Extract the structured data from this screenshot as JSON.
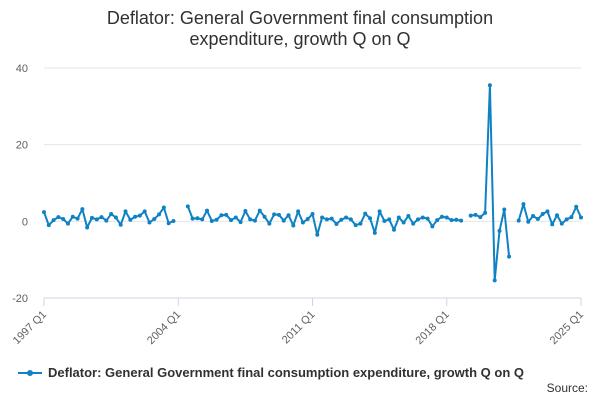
{
  "chart_data": {
    "type": "line",
    "title_line1": "Deflator: General Government final consumption",
    "title_line2": "expenditure, growth Q on Q",
    "xlabel": "",
    "ylabel": "",
    "ylim": [
      -20,
      40
    ],
    "yticks": [
      "40",
      "20",
      "0",
      "-20"
    ],
    "xticks": [
      "1997 Q1",
      "2004 Q1",
      "2011 Q1",
      "2018 Q1",
      "2025 Q1"
    ],
    "grid": true,
    "legend_position": "bottom-left",
    "color": "#0f82c4",
    "series": [
      {
        "name": "Deflator: General Government final consumption expenditure, growth Q on Q",
        "x_start": "1997 Q1",
        "values": [
          2.4,
          -1.0,
          0.3,
          1.1,
          0.6,
          -0.6,
          1.2,
          0.7,
          3.2,
          -1.6,
          0.9,
          0.5,
          1.1,
          0.2,
          1.9,
          1.0,
          -0.9,
          2.6,
          0.4,
          1.2,
          1.5,
          2.6,
          -0.3,
          0.6,
          1.8,
          3.6,
          -0.5,
          0.1,
          null,
          null,
          3.9,
          0.7,
          0.8,
          0.5,
          2.8,
          0.1,
          0.4,
          1.6,
          1.7,
          0.3,
          1.0,
          -0.2,
          2.7,
          0.5,
          0.2,
          2.8,
          1.2,
          -0.6,
          1.8,
          1.7,
          0.2,
          1.6,
          -1.1,
          2.6,
          -0.3,
          0.6,
          1.9,
          -3.5,
          1.0,
          0.5,
          0.7,
          -0.7,
          0.4,
          1.0,
          0.5,
          -1.0,
          -0.6,
          2.0,
          0.8,
          -3.0,
          2.6,
          0.1,
          0.5,
          -2.2,
          1.0,
          -0.3,
          1.4,
          -0.6,
          0.5,
          1.0,
          0.7,
          -1.3,
          0.3,
          1.2,
          1.0,
          0.3,
          0.4,
          0.2,
          null,
          1.5,
          1.7,
          1.1,
          2.2,
          35.5,
          -15.4,
          -2.5,
          3.1,
          -9.2,
          null,
          0.2,
          4.5,
          -0.1,
          1.4,
          0.6,
          1.9,
          2.6,
          -0.8,
          1.6,
          -0.6,
          0.5,
          1.1,
          3.8,
          1.0
        ]
      }
    ]
  },
  "footer": {
    "source_label": "Source:"
  }
}
